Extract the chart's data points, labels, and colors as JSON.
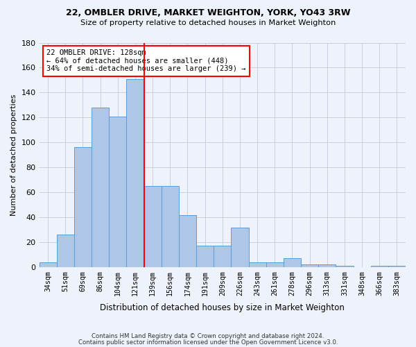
{
  "title1": "22, OMBLER DRIVE, MARKET WEIGHTON, YORK, YO43 3RW",
  "title2": "Size of property relative to detached houses in Market Weighton",
  "xlabel": "Distribution of detached houses by size in Market Weighton",
  "ylabel": "Number of detached properties",
  "categories": [
    "34sqm",
    "51sqm",
    "69sqm",
    "86sqm",
    "104sqm",
    "121sqm",
    "139sqm",
    "156sqm",
    "174sqm",
    "191sqm",
    "209sqm",
    "226sqm",
    "243sqm",
    "261sqm",
    "278sqm",
    "296sqm",
    "313sqm",
    "331sqm",
    "348sqm",
    "366sqm",
    "383sqm"
  ],
  "bar_values": [
    4,
    26,
    96,
    128,
    121,
    151,
    65,
    65,
    42,
    17,
    17,
    32,
    4,
    4,
    7,
    2,
    2,
    1,
    0,
    1,
    1
  ],
  "bar_color": "#aec6e8",
  "bar_edgecolor": "#5b9bd5",
  "vline_x": 5.5,
  "vline_color": "red",
  "annotation_text": "22 OMBLER DRIVE: 128sqm\n← 64% of detached houses are smaller (448)\n34% of semi-detached houses are larger (239) →",
  "annotation_box_color": "white",
  "annotation_box_edgecolor": "red",
  "ylim": [
    0,
    180
  ],
  "yticks": [
    0,
    20,
    40,
    60,
    80,
    100,
    120,
    140,
    160,
    180
  ],
  "footer1": "Contains HM Land Registry data © Crown copyright and database right 2024.",
  "footer2": "Contains public sector information licensed under the Open Government Licence v3.0.",
  "background_color": "#eef2fa",
  "grid_color": "#c8cfe0"
}
